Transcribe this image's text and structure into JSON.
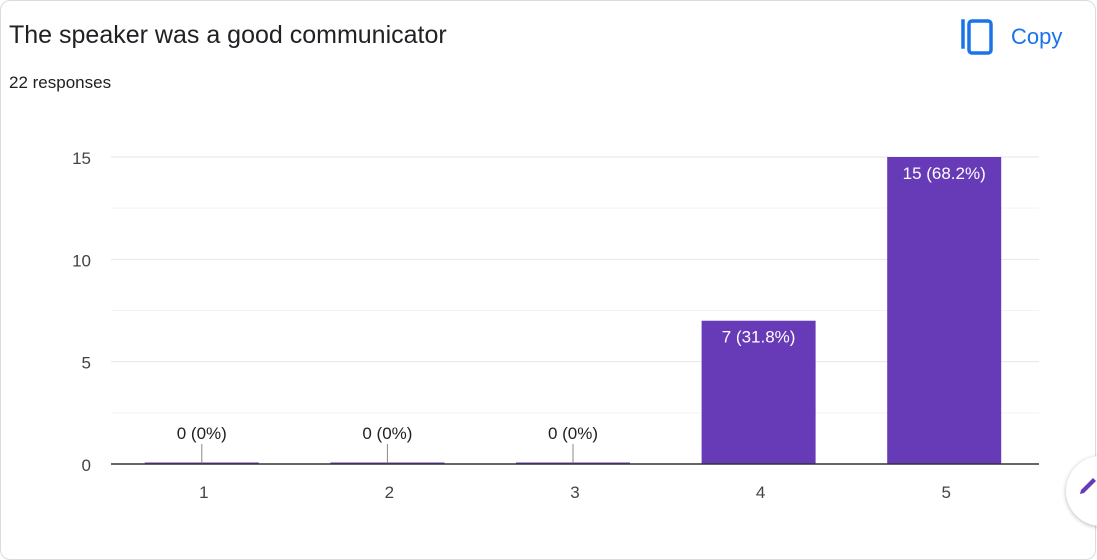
{
  "header": {
    "title": "The speaker was a good communicator",
    "subtitle": "22 responses",
    "copy_label": "Copy"
  },
  "icons": {
    "copy": "copy-icon",
    "fab": "pencil-icon"
  },
  "colors": {
    "bar": "#673ab7",
    "accent": "#1a73e8",
    "grid": "#eeeeee",
    "axis": "#333333"
  },
  "chart_data": {
    "type": "bar",
    "categories": [
      "1",
      "2",
      "3",
      "4",
      "5"
    ],
    "values": [
      0,
      0,
      0,
      7,
      15
    ],
    "data_labels": [
      "0 (0%)",
      "0 (0%)",
      "0 (0%)",
      "7 (31.8%)",
      "15 (68.2%)"
    ],
    "yticks": [
      0,
      5,
      10,
      15
    ],
    "ylim": [
      0,
      15
    ],
    "grid": true,
    "legend": "none",
    "title": "The speaker was a good communicator",
    "xlabel": "",
    "ylabel": ""
  }
}
